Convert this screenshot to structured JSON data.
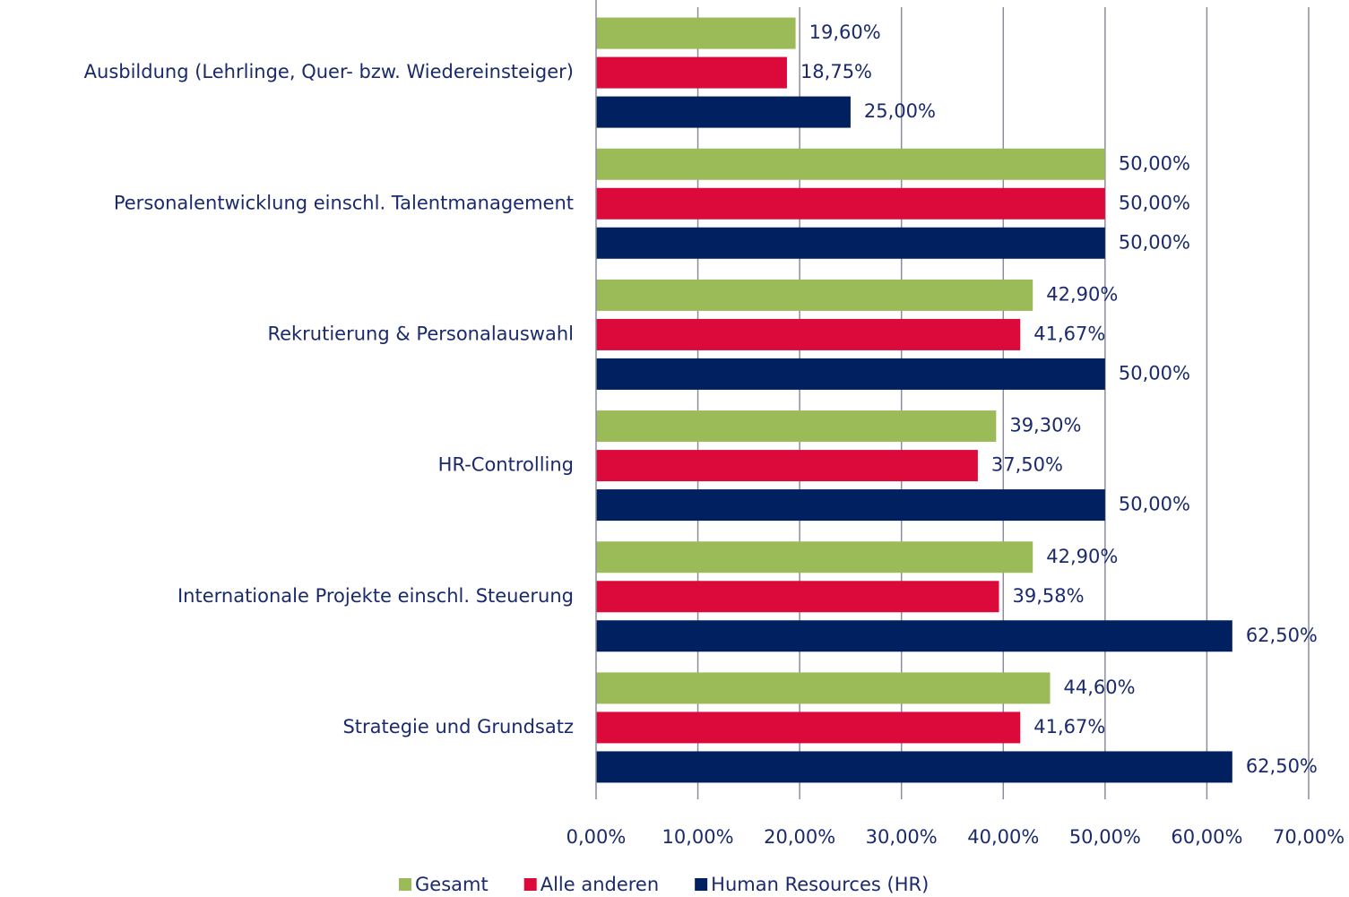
{
  "chart_data": {
    "type": "bar",
    "orientation": "horizontal",
    "categories": [
      "Ausbildung (Lehrlinge, Quer- bzw. Wiedereinsteiger)",
      "Personalentwicklung einschl. Talentmanagement",
      "Rekrutierung & Personalauswahl",
      "HR-Controlling",
      "Internationale Projekte einschl. Steuerung",
      "Strategie und Grundsatz"
    ],
    "series": [
      {
        "name": "Gesamt",
        "color": "#9bbb59",
        "values": [
          19.6,
          50,
          42.9,
          39.3,
          42.9,
          44.6
        ],
        "value_labels": [
          "19,60%",
          "50,00%",
          "42,90%",
          "39,30%",
          "42,90%",
          "44,60%"
        ]
      },
      {
        "name": "Alle anderen",
        "color": "#dc0a3a",
        "values": [
          18.75,
          50,
          41.67,
          37.5,
          39.58,
          41.67
        ],
        "value_labels": [
          "18,75%",
          "50,00%",
          "41,67%",
          "37,50%",
          "39,58%",
          "41,67%"
        ]
      },
      {
        "name": "Human Resources (HR)",
        "color": "#002060",
        "values": [
          25,
          50,
          50,
          50,
          62.5,
          62.5
        ],
        "value_labels": [
          "25,00%",
          "50,00%",
          "50,00%",
          "50,00%",
          "62,50%",
          "62,50%"
        ]
      }
    ],
    "xlim": [
      0,
      70
    ],
    "xticks": [
      {
        "value": 0,
        "label": "0,00%"
      },
      {
        "value": 10,
        "label": "10,00%"
      },
      {
        "value": 20,
        "label": "20,00%"
      },
      {
        "value": 30,
        "label": "30,00%"
      },
      {
        "value": 40,
        "label": "40,00%"
      },
      {
        "value": 50,
        "label": "50,00%"
      },
      {
        "value": 60,
        "label": "60,00%"
      },
      {
        "value": 70,
        "label": "70,00%"
      }
    ],
    "grid": true,
    "legend": "bottom"
  }
}
